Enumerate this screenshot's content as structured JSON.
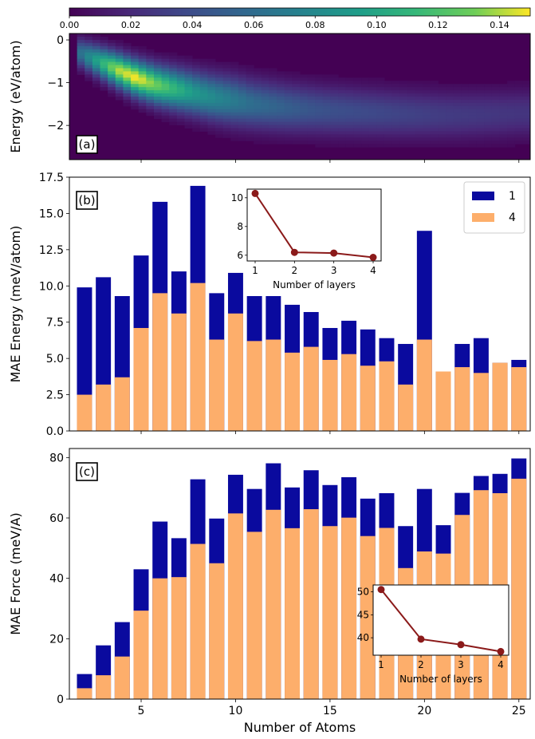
{
  "chart_data": [
    {
      "type": "heatmap",
      "panel_label": "(a)",
      "ylabel": "Energy (eV/atom)",
      "yticks": [
        0,
        -1,
        -2
      ],
      "ylim": [
        -2.8,
        0.15
      ],
      "xlim": [
        1.5,
        25.5
      ],
      "colormap": "viridis",
      "colorbar": {
        "ticks": [
          "0.00",
          "0.02",
          "0.04",
          "0.06",
          "0.08",
          "0.10",
          "0.12",
          "0.14"
        ],
        "range": [
          0,
          0.15
        ]
      },
      "ridge": {
        "x": [
          2,
          3,
          4,
          5,
          6,
          7,
          8,
          9,
          10,
          11,
          12,
          13,
          14,
          15,
          16,
          17,
          18,
          19,
          20,
          21,
          22,
          23,
          24,
          25
        ],
        "center": [
          -0.3,
          -0.5,
          -0.7,
          -0.9,
          -1.05,
          -1.15,
          -1.25,
          -1.35,
          -1.42,
          -1.5,
          -1.55,
          -1.6,
          -1.63,
          -1.66,
          -1.68,
          -1.7,
          -1.72,
          -1.74,
          -1.75,
          -1.76,
          -1.76,
          -1.75,
          -1.74,
          -1.72
        ],
        "peak": [
          0.06,
          0.1,
          0.14,
          0.15,
          0.13,
          0.11,
          0.09,
          0.08,
          0.07,
          0.06,
          0.055,
          0.05,
          0.045,
          0.042,
          0.04,
          0.038,
          0.036,
          0.034,
          0.032,
          0.03,
          0.029,
          0.028,
          0.027,
          0.026
        ]
      }
    },
    {
      "type": "bar",
      "panel_label": "(b)",
      "ylabel": "MAE Energy (meV/atom)",
      "x": [
        2,
        3,
        4,
        5,
        6,
        7,
        8,
        9,
        10,
        11,
        12,
        13,
        14,
        15,
        16,
        17,
        18,
        19,
        20,
        21,
        22,
        23,
        24,
        25
      ],
      "series": [
        {
          "name": "1",
          "color": "#0a0a9e",
          "values": [
            9.9,
            10.6,
            9.3,
            12.1,
            15.8,
            11.0,
            16.9,
            9.5,
            10.9,
            9.3,
            9.3,
            8.7,
            8.2,
            7.1,
            7.6,
            7.0,
            6.4,
            6.0,
            13.8,
            4.1,
            6.0,
            6.4,
            4.7,
            4.9
          ]
        },
        {
          "name": "4",
          "color": "#fdae6b",
          "values": [
            2.5,
            3.2,
            3.7,
            7.1,
            9.5,
            8.1,
            10.2,
            6.3,
            8.1,
            6.2,
            6.3,
            5.4,
            5.8,
            4.9,
            5.3,
            4.5,
            4.8,
            3.2,
            6.3,
            4.1,
            4.4,
            4.0,
            4.7,
            4.4
          ]
        }
      ],
      "yticks": [
        "0.0",
        "2.5",
        "5.0",
        "7.5",
        "10.0",
        "12.5",
        "15.0",
        "17.5"
      ],
      "ylim": [
        0,
        17.5
      ],
      "xlim": [
        1.2,
        25.6
      ],
      "legend": "top-right",
      "inset": {
        "x": [
          1,
          2,
          3,
          4
        ],
        "y": [
          10.3,
          6.2,
          6.15,
          5.85
        ],
        "xlabel": "Number of layers",
        "yticks": [
          "6",
          "8",
          "10"
        ],
        "xticks": [
          "1",
          "2",
          "3",
          "4"
        ],
        "ylim": [
          5.6,
          10.6
        ],
        "color": "#8b1a1a"
      }
    },
    {
      "type": "bar",
      "panel_label": "(c)",
      "ylabel": "MAE Force (meV/A)",
      "xlabel": "Number of Atoms",
      "x": [
        2,
        3,
        4,
        5,
        6,
        7,
        8,
        9,
        10,
        11,
        12,
        13,
        14,
        15,
        16,
        17,
        18,
        19,
        20,
        21,
        22,
        23,
        24,
        25
      ],
      "series": [
        {
          "name": "1",
          "color": "#0a0a9e",
          "values": [
            8.3,
            17.8,
            25.5,
            43.0,
            58.8,
            53.3,
            72.8,
            59.8,
            74.3,
            69.6,
            78.1,
            70.1,
            75.8,
            70.9,
            73.5,
            66.4,
            68.2,
            57.3,
            69.6,
            57.6,
            68.3,
            73.9,
            74.6,
            79.7
          ]
        },
        {
          "name": "4",
          "color": "#fdae6b",
          "values": [
            3.6,
            7.9,
            14.1,
            29.3,
            40.0,
            40.4,
            51.4,
            45.0,
            61.5,
            55.4,
            62.7,
            56.6,
            62.9,
            57.3,
            60.1,
            54.0,
            56.7,
            43.4,
            48.9,
            48.2,
            61.0,
            69.2,
            68.2,
            73.0
          ]
        }
      ],
      "yticks": [
        "0",
        "20",
        "40",
        "60",
        "80"
      ],
      "ylim": [
        0,
        83
      ],
      "xlim": [
        1.2,
        25.6
      ],
      "xticks": [
        "5",
        "10",
        "15",
        "20",
        "25"
      ],
      "inset": {
        "x": [
          1,
          2,
          3,
          4
        ],
        "y": [
          50.5,
          39.7,
          38.5,
          37.0
        ],
        "xlabel": "Number of layers",
        "yticks": [
          "40",
          "45",
          "50"
        ],
        "xticks": [
          "1",
          "2",
          "3",
          "4"
        ],
        "ylim": [
          36.2,
          51.5
        ],
        "color": "#8b1a1a"
      }
    }
  ]
}
